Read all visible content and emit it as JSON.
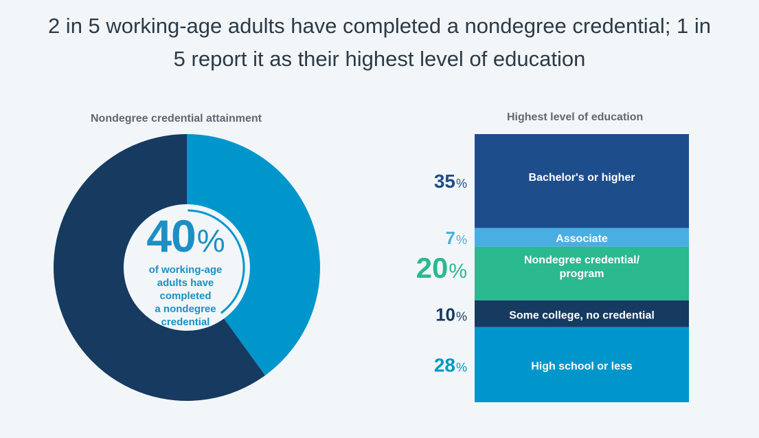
{
  "headline": {
    "line1": "2 in 5 working-age adults have completed a nondegree credential; 1 in",
    "line2": "5 report it as their highest level of education"
  },
  "colors": {
    "background": "#f2f6f9",
    "bachelors": "#1e4d8c",
    "associate": "#4aaee2",
    "nondegree": "#2bb98f",
    "some_college": "#163a60",
    "high_school": "#0096cc",
    "donut_completed": "#0096cc",
    "donut_rest": "#163a60"
  },
  "donut": {
    "title": "Nondegree credential attainment",
    "center_value": "40",
    "center_unit": "%",
    "caption": [
      "of working-age",
      "adults have",
      "completed",
      "a nondegree",
      "credential"
    ]
  },
  "stack": {
    "title": "Highest level of education"
  },
  "chart_data": [
    {
      "type": "pie",
      "title": "Nondegree credential attainment",
      "slices": [
        {
          "label": "Completed a nondegree credential",
          "value": 40,
          "color": "#0096cc"
        },
        {
          "label": "",
          "value": 60,
          "color": "#163a60"
        }
      ]
    },
    {
      "type": "bar",
      "stacked": true,
      "title": "Highest level of education",
      "categories": [
        "Bachelor's or higher",
        "Associate",
        "Nondegree credential/ program",
        "Some college, no credential",
        "High school or less"
      ],
      "values": [
        35,
        7,
        20,
        10,
        28
      ],
      "unit": "%",
      "segments": [
        {
          "label_lines": [
            "Bachelor's or higher"
          ],
          "value": 35,
          "color": "#1e4d8c",
          "pct_color": "#1e4d8c"
        },
        {
          "label_lines": [
            "Associate"
          ],
          "value": 7,
          "color": "#4aaee2",
          "pct_color": "#4aaee2"
        },
        {
          "label_lines": [
            "Nondegree credential/",
            "program"
          ],
          "value": 20,
          "color": "#2bb98f",
          "pct_color": "#2bb98f"
        },
        {
          "label_lines": [
            "Some college, no credential"
          ],
          "value": 10,
          "color": "#163a60",
          "pct_color": "#163a60"
        },
        {
          "label_lines": [
            "High school or less"
          ],
          "value": 28,
          "color": "#0096cc",
          "pct_color": "#0096cc"
        }
      ]
    }
  ]
}
